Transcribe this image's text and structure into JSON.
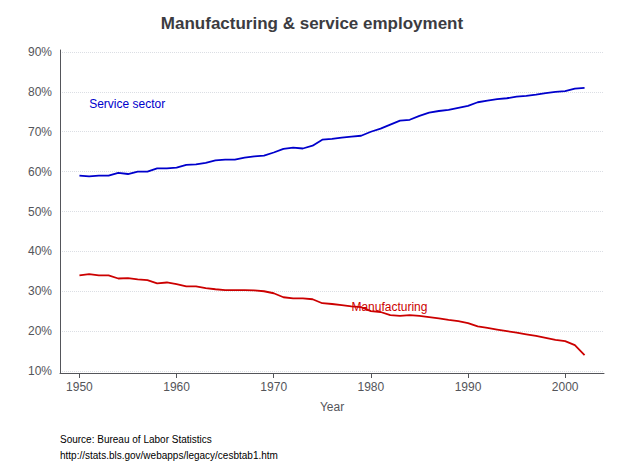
{
  "chart_data": {
    "type": "line",
    "title": "Manufacturing & service employment",
    "xlabel": "Year",
    "source": [
      "Source: Bureau of Labor Statistics",
      "http://stats.bls.gov/webapps/legacy/cesbtab1.htm"
    ],
    "x": [
      1950,
      1951,
      1952,
      1953,
      1954,
      1955,
      1956,
      1957,
      1958,
      1959,
      1960,
      1961,
      1962,
      1963,
      1964,
      1965,
      1966,
      1967,
      1968,
      1969,
      1970,
      1971,
      1972,
      1973,
      1974,
      1975,
      1976,
      1977,
      1978,
      1979,
      1980,
      1981,
      1982,
      1983,
      1984,
      1985,
      1986,
      1987,
      1988,
      1989,
      1990,
      1991,
      1992,
      1993,
      1994,
      1995,
      1996,
      1997,
      1998,
      1999,
      2000,
      2001,
      2002
    ],
    "series": [
      {
        "color": "#0000cc",
        "values": [
          0.59,
          0.588,
          0.59,
          0.59,
          0.597,
          0.594,
          0.6,
          0.6,
          0.608,
          0.608,
          0.61,
          0.617,
          0.618,
          0.622,
          0.628,
          0.63,
          0.63,
          0.635,
          0.638,
          0.64,
          0.648,
          0.657,
          0.66,
          0.658,
          0.665,
          0.68,
          0.682,
          0.685,
          0.688,
          0.69,
          0.7,
          0.708,
          0.718,
          0.728,
          0.73,
          0.74,
          0.748,
          0.752,
          0.755,
          0.76,
          0.765,
          0.774,
          0.778,
          0.782,
          0.784,
          0.788,
          0.79,
          0.793,
          0.797,
          0.8,
          0.802,
          0.808,
          0.81
        ]
      },
      {
        "color": "#cc0000",
        "values": [
          0.34,
          0.343,
          0.34,
          0.34,
          0.332,
          0.333,
          0.33,
          0.328,
          0.32,
          0.322,
          0.318,
          0.312,
          0.312,
          0.308,
          0.305,
          0.303,
          0.303,
          0.303,
          0.302,
          0.3,
          0.295,
          0.285,
          0.282,
          0.282,
          0.28,
          0.27,
          0.268,
          0.265,
          0.262,
          0.26,
          0.25,
          0.248,
          0.24,
          0.238,
          0.24,
          0.238,
          0.235,
          0.232,
          0.228,
          0.225,
          0.22,
          0.212,
          0.208,
          0.204,
          0.2,
          0.196,
          0.192,
          0.188,
          0.183,
          0.178,
          0.175,
          0.165,
          0.14
        ]
      }
    ],
    "annotations": [
      {
        "text": "Service sector",
        "x": 1951,
        "y": 0.755,
        "color": "#0000cc"
      },
      {
        "text": "Manufacturing",
        "x": 1978,
        "y": 0.245,
        "color": "#cc0000"
      }
    ],
    "xlim": [
      1948,
      2004
    ],
    "xticks": [
      1950,
      1960,
      1970,
      1980,
      1990,
      2000
    ],
    "ylim": [
      0.095,
      0.905
    ],
    "yticks": [
      {
        "value": 0.1,
        "label": "10%"
      },
      {
        "value": 0.2,
        "label": "20%"
      },
      {
        "value": 0.3,
        "label": "30%"
      },
      {
        "value": 0.4,
        "label": "40%"
      },
      {
        "value": 0.5,
        "label": "50%"
      },
      {
        "value": 0.6,
        "label": "60%"
      },
      {
        "value": 0.7,
        "label": "70%"
      },
      {
        "value": 0.8,
        "label": "80%"
      },
      {
        "value": 0.9,
        "label": "90%"
      }
    ],
    "grid": true
  }
}
